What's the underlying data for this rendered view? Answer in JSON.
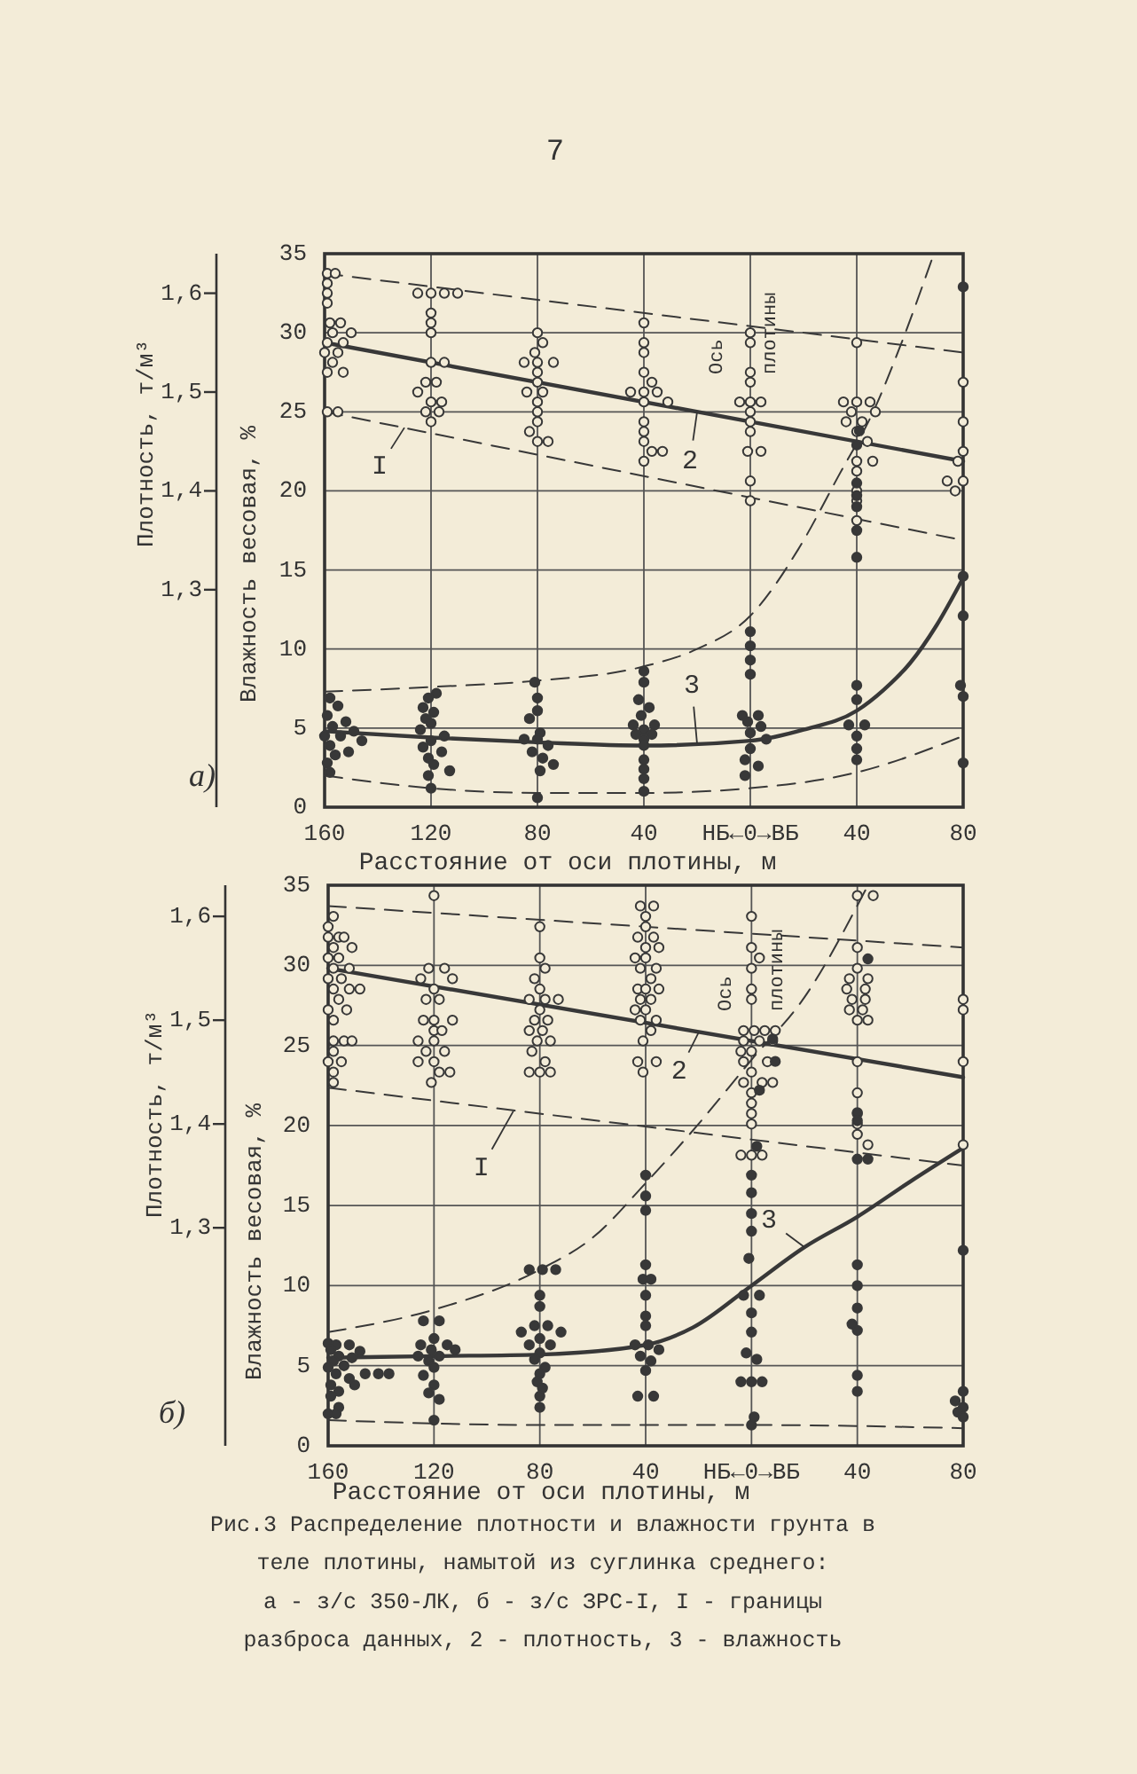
{
  "chart_data": [
    {
      "type": "scatter",
      "title": "а)",
      "xlabel": "Расстояние от оси плотины, м",
      "ylabel": "Влажность весовая, %",
      "y2label": "Плотность, т/м³",
      "xlim": [
        -160,
        80
      ],
      "xticks": [
        {
          "value": -160,
          "label": "160"
        },
        {
          "value": -120,
          "label": "120"
        },
        {
          "value": -80,
          "label": "80"
        },
        {
          "value": -40,
          "label": "40"
        },
        {
          "value": 0,
          "label": "НБ←0→ВБ"
        },
        {
          "value": 40,
          "label": "40"
        },
        {
          "value": 80,
          "label": "80"
        }
      ],
      "ylim": [
        0,
        35
      ],
      "yticks": [
        0,
        5,
        10,
        15,
        20,
        25,
        30,
        35
      ],
      "y2lim": [
        1.08,
        1.64
      ],
      "y2ticks": [
        {
          "value": 1.3,
          "label": "1,3"
        },
        {
          "value": 1.4,
          "label": "1,4"
        },
        {
          "value": 1.5,
          "label": "1,5"
        },
        {
          "value": 1.6,
          "label": "1,6"
        }
      ],
      "grid": true,
      "annotations": [
        "7",
        "Ось плотины",
        {
          "text": "2",
          "x": -20,
          "y": 25
        },
        {
          "text": "3",
          "x": -20,
          "y": 4
        },
        {
          "text": "I",
          "x": -130,
          "y": 24
        }
      ],
      "series": [
        {
          "type": "line",
          "axis": "y2",
          "line_style": "solid",
          "color": "#383838",
          "x": [
            -160,
            80
          ],
          "values": [
            1.55,
            1.43
          ]
        },
        {
          "type": "line",
          "axis": "y",
          "line_style": "solid",
          "color": "#383838",
          "x": [
            -160,
            -120,
            -80,
            -40,
            0,
            20,
            40,
            50,
            60,
            70,
            80
          ],
          "values": [
            4.8,
            4.4,
            4.1,
            3.9,
            4.2,
            4.9,
            6.1,
            7.4,
            9.1,
            11.5,
            14.5
          ]
        },
        {
          "type": "line",
          "axis": "y2",
          "line_style": "dashed",
          "color": "#383838",
          "x": [
            -160,
            80
          ],
          "values": [
            1.48,
            1.35
          ]
        },
        {
          "type": "line",
          "axis": "y2",
          "line_style": "dashed",
          "color": "#383838",
          "x": [
            -160,
            80
          ],
          "values": [
            1.62,
            1.54
          ]
        },
        {
          "type": "line",
          "axis": "y",
          "line_style": "dashed",
          "color": "#383838",
          "x": [
            -160,
            -120,
            -80,
            -40,
            -20,
            0,
            18,
            33,
            47,
            56,
            69
          ],
          "values": [
            7.3,
            7.6,
            8.0,
            8.9,
            10.0,
            12.1,
            16.3,
            20.9,
            25.3,
            29.0,
            35
          ]
        },
        {
          "type": "line",
          "axis": "y",
          "line_style": "dashed",
          "color": "#383838",
          "x": [
            -160,
            -120,
            -80,
            -40,
            0,
            40,
            80
          ],
          "values": [
            2.0,
            1.2,
            0.9,
            0.9,
            1.2,
            2.2,
            4.5
          ]
        },
        {
          "axis": "y2",
          "marker": "circle",
          "color": "#383838",
          "x": [
            -159,
            -156,
            -159,
            -159,
            -159,
            -158,
            -154,
            -150,
            -157,
            -153,
            -159,
            -155,
            -160,
            -157,
            -153,
            -159,
            -159,
            -155,
            -125,
            -120,
            -115,
            -110,
            -120,
            -120,
            -120,
            -120,
            -115,
            -122,
            -118,
            -125,
            -120,
            -116,
            -122,
            -117,
            -120,
            -80,
            -78,
            -81,
            -85,
            -80,
            -74,
            -80,
            -80,
            -84,
            -78,
            -80,
            -80,
            -80,
            -83,
            -80,
            -76,
            -40,
            -40,
            -40,
            -40,
            -37,
            -45,
            -40,
            -35,
            -31,
            -40,
            -40,
            -40,
            -40,
            -37,
            -33,
            -40,
            0,
            0,
            0,
            0,
            -4,
            0,
            4,
            0,
            0,
            0,
            -1,
            4,
            0,
            0,
            40,
            35,
            40,
            45,
            38,
            47,
            42,
            36,
            40,
            44,
            40,
            46,
            40,
            40,
            40,
            40,
            80,
            80,
            80,
            78,
            74,
            80,
            77
          ],
          "values": [
            1.62,
            1.62,
            1.61,
            1.6,
            1.59,
            1.57,
            1.57,
            1.56,
            1.56,
            1.55,
            1.55,
            1.54,
            1.54,
            1.53,
            1.52,
            1.52,
            1.48,
            1.48,
            1.6,
            1.6,
            1.6,
            1.6,
            1.58,
            1.57,
            1.56,
            1.53,
            1.53,
            1.51,
            1.51,
            1.5,
            1.49,
            1.49,
            1.48,
            1.48,
            1.47,
            1.56,
            1.55,
            1.54,
            1.53,
            1.53,
            1.53,
            1.52,
            1.51,
            1.5,
            1.5,
            1.49,
            1.48,
            1.47,
            1.46,
            1.45,
            1.45,
            1.57,
            1.55,
            1.54,
            1.52,
            1.51,
            1.5,
            1.5,
            1.5,
            1.49,
            1.49,
            1.47,
            1.46,
            1.45,
            1.44,
            1.44,
            1.43,
            1.56,
            1.55,
            1.52,
            1.51,
            1.49,
            1.49,
            1.49,
            1.48,
            1.47,
            1.46,
            1.44,
            1.44,
            1.41,
            1.39,
            1.55,
            1.49,
            1.49,
            1.49,
            1.48,
            1.48,
            1.47,
            1.47,
            1.46,
            1.45,
            1.43,
            1.43,
            1.42,
            1.4,
            1.39,
            1.37,
            1.51,
            1.47,
            1.44,
            1.43,
            1.41,
            1.41,
            1.4
          ]
        },
        {
          "axis": "y",
          "marker": "circle",
          "color": "#383838",
          "x": [
            -158,
            -155,
            -159,
            -152,
            -157,
            -149,
            -160,
            -154,
            -146,
            -158,
            -151,
            -156,
            -159,
            -158,
            -118,
            -121,
            -123,
            -119,
            -122,
            -120,
            -124,
            -115,
            -120,
            -123,
            -116,
            -121,
            -119,
            -113,
            -121,
            -120,
            -81,
            -80,
            -80,
            -83,
            -79,
            -85,
            -80,
            -76,
            -82,
            -78,
            -74,
            -79,
            -80,
            -40,
            -40,
            -42,
            -38,
            -41,
            -44,
            -36,
            -40,
            -43,
            -37,
            -40,
            -40,
            -40,
            -40,
            -40,
            -40,
            0,
            0,
            0,
            0,
            -3,
            3,
            -1,
            4,
            0,
            6,
            0,
            -2,
            3,
            -2,
            41,
            40,
            40,
            40,
            40,
            40,
            40,
            40,
            40,
            37,
            43,
            40,
            40,
            40,
            80,
            80,
            80,
            79,
            80,
            80
          ],
          "values": [
            6.9,
            6.4,
            5.8,
            5.4,
            5.1,
            4.8,
            4.5,
            4.5,
            4.2,
            3.9,
            3.5,
            3.3,
            2.8,
            2.2,
            7.2,
            6.9,
            6.3,
            6.0,
            5.6,
            5.3,
            4.9,
            4.5,
            4.2,
            3.8,
            3.5,
            3.1,
            2.7,
            2.3,
            2.0,
            1.2,
            7.9,
            6.9,
            6.1,
            5.6,
            4.7,
            4.3,
            4.3,
            3.9,
            3.5,
            3.1,
            2.7,
            2.3,
            0.6,
            8.6,
            7.9,
            6.8,
            6.3,
            5.8,
            5.2,
            5.2,
            4.9,
            4.6,
            4.6,
            4.3,
            3.9,
            3.0,
            2.4,
            1.8,
            1.0,
            11.1,
            10.2,
            9.3,
            8.4,
            5.8,
            5.8,
            5.4,
            5.1,
            4.7,
            4.3,
            3.7,
            3.0,
            2.6,
            2.0,
            23.8,
            22.9,
            20.5,
            19.7,
            19.0,
            17.5,
            15.8,
            7.7,
            6.8,
            5.2,
            5.2,
            4.5,
            3.7,
            3.0,
            32.9,
            14.6,
            12.1,
            7.7,
            7.0,
            2.8
          ]
        }
      ]
    },
    {
      "type": "scatter",
      "title": "б)",
      "xlabel": "Расстояние от оси плотины, м",
      "ylabel": "Влажность весовая, %",
      "y2label": "Плотность, т/м³",
      "xlim": [
        -160,
        80
      ],
      "xticks": [
        {
          "value": -160,
          "label": "160"
        },
        {
          "value": -120,
          "label": "120"
        },
        {
          "value": -80,
          "label": "80"
        },
        {
          "value": -40,
          "label": "40"
        },
        {
          "value": 0,
          "label": "НБ←0→ВБ"
        },
        {
          "value": 40,
          "label": "40"
        },
        {
          "value": 80,
          "label": "80"
        }
      ],
      "ylim": [
        0,
        35
      ],
      "yticks": [
        0,
        5,
        10,
        15,
        20,
        25,
        30,
        35
      ],
      "y2lim": [
        1.09,
        1.63
      ],
      "y2ticks": [
        {
          "value": 1.3,
          "label": "1,3"
        },
        {
          "value": 1.4,
          "label": "1,4"
        },
        {
          "value": 1.5,
          "label": "1,5"
        },
        {
          "value": 1.6,
          "label": "1,6"
        }
      ],
      "grid": true,
      "annotations": [
        "Ось плотины",
        {
          "text": "2",
          "x": -20,
          "y": 25.8
        },
        {
          "text": "3",
          "x": 20,
          "y": 12.4
        },
        {
          "text": "I",
          "x": -90,
          "y": 20.9
        },
        "Рис.3 Распределение плотности и влажности грунта в\nтеле плотины, намытой из суглинка среднего:\nа - з/с 350-ЛК, б - з/с ЗРС-I, I - границы\nразброса данных, 2 - плотность, 3 - влажность"
      ],
      "series": [
        {
          "type": "line",
          "axis": "y2",
          "line_style": "solid",
          "color": "#383838",
          "x": [
            -160,
            80
          ],
          "values": [
            1.55,
            1.445
          ]
        },
        {
          "type": "line",
          "axis": "y",
          "line_style": "solid",
          "color": "#383838",
          "x": [
            -160,
            -120,
            -80,
            -40,
            -22,
            0,
            20,
            40,
            60,
            80
          ],
          "values": [
            5.5,
            5.6,
            5.7,
            6.3,
            7.4,
            10.0,
            12.4,
            14.3,
            16.5,
            18.6
          ]
        },
        {
          "type": "line",
          "axis": "y2",
          "line_style": "dashed",
          "color": "#383838",
          "x": [
            -160,
            80
          ],
          "values": [
            1.435,
            1.36
          ]
        },
        {
          "type": "line",
          "axis": "y2",
          "line_style": "dashed",
          "color": "#383838",
          "x": [
            -160,
            80
          ],
          "values": [
            1.61,
            1.57
          ]
        },
        {
          "type": "line",
          "axis": "y",
          "line_style": "dashed",
          "color": "#383838",
          "x": [
            -160,
            -120,
            -80,
            -60,
            -40,
            -20,
            0,
            20,
            44
          ],
          "values": [
            7.1,
            8.5,
            11.0,
            13.0,
            16.4,
            20.1,
            24.1,
            28.0,
            35
          ]
        },
        {
          "type": "line",
          "axis": "y",
          "line_style": "dashed",
          "color": "#383838",
          "x": [
            -160,
            -80,
            0,
            80
          ],
          "values": [
            1.6,
            1.3,
            1.3,
            1.1
          ]
        },
        {
          "axis": "y2",
          "marker": "circle",
          "color": "#383838",
          "x": [
            -158,
            -160,
            -156,
            -160,
            -154,
            -158,
            -151,
            -160,
            -156,
            -158,
            -152,
            -160,
            -155,
            -158,
            -152,
            -148,
            -156,
            -160,
            -153,
            -158,
            -158,
            -154,
            -151,
            -158,
            -160,
            -155,
            -158,
            -158,
            -120,
            -122,
            -116,
            -125,
            -113,
            -120,
            -123,
            -118,
            -120,
            -124,
            -113,
            -120,
            -117,
            -126,
            -120,
            -123,
            -116,
            -120,
            -126,
            -118,
            -114,
            -121,
            -80,
            -80,
            -78,
            -82,
            -80,
            -84,
            -78,
            -73,
            -80,
            -82,
            -77,
            -84,
            -79,
            -81,
            -76,
            -83,
            -78,
            -84,
            -80,
            -76,
            -42,
            -37,
            -40,
            -40,
            -43,
            -37,
            -40,
            -35,
            -44,
            -40,
            -36,
            -42,
            -38,
            -43,
            -40,
            -35,
            -42,
            -38,
            -44,
            -40,
            -36,
            -42,
            -38,
            -41,
            -43,
            -36,
            -41,
            0,
            0,
            3,
            0,
            0,
            0,
            -3,
            1,
            5,
            9,
            -3,
            3,
            8,
            -4,
            0,
            -3,
            6,
            0,
            -3,
            4,
            8,
            0,
            0,
            0,
            0,
            -4,
            0,
            4,
            40,
            46,
            40,
            40,
            37,
            44,
            36,
            43,
            38,
            43,
            37,
            42,
            40,
            44,
            40,
            40,
            40,
            40,
            40,
            44,
            80,
            80,
            80,
            80
          ],
          "values": [
            1.6,
            1.59,
            1.58,
            1.58,
            1.58,
            1.57,
            1.57,
            1.56,
            1.56,
            1.55,
            1.55,
            1.54,
            1.54,
            1.53,
            1.53,
            1.53,
            1.52,
            1.51,
            1.51,
            1.5,
            1.48,
            1.48,
            1.48,
            1.47,
            1.46,
            1.46,
            1.45,
            1.44,
            1.62,
            1.55,
            1.55,
            1.54,
            1.54,
            1.53,
            1.52,
            1.52,
            1.5,
            1.5,
            1.5,
            1.49,
            1.49,
            1.48,
            1.48,
            1.47,
            1.47,
            1.46,
            1.46,
            1.45,
            1.45,
            1.44,
            1.59,
            1.56,
            1.55,
            1.54,
            1.53,
            1.52,
            1.52,
            1.52,
            1.51,
            1.5,
            1.5,
            1.49,
            1.49,
            1.48,
            1.48,
            1.47,
            1.46,
            1.45,
            1.45,
            1.45,
            1.61,
            1.61,
            1.6,
            1.59,
            1.58,
            1.58,
            1.57,
            1.57,
            1.56,
            1.56,
            1.55,
            1.55,
            1.54,
            1.53,
            1.53,
            1.53,
            1.52,
            1.52,
            1.51,
            1.51,
            1.5,
            1.5,
            1.49,
            1.48,
            1.46,
            1.46,
            1.45,
            1.6,
            1.57,
            1.56,
            1.55,
            1.53,
            1.52,
            1.49,
            1.49,
            1.49,
            1.49,
            1.48,
            1.48,
            1.48,
            1.47,
            1.47,
            1.46,
            1.46,
            1.45,
            1.44,
            1.44,
            1.44,
            1.43,
            1.42,
            1.41,
            1.4,
            1.37,
            1.37,
            1.37,
            1.62,
            1.62,
            1.57,
            1.55,
            1.54,
            1.54,
            1.53,
            1.53,
            1.52,
            1.52,
            1.51,
            1.51,
            1.5,
            1.5,
            1.46,
            1.43,
            1.41,
            1.4,
            1.39,
            1.38,
            1.52,
            1.51,
            1.46,
            1.38
          ]
        },
        {
          "axis": "y",
          "marker": "circle",
          "color": "#383838",
          "x": [
            -160,
            -157,
            -152,
            -159,
            -148,
            -156,
            -151,
            -158,
            -154,
            -160,
            -146,
            -141,
            -137,
            -157,
            -152,
            -159,
            -150,
            -156,
            -159,
            -156,
            -160,
            -157,
            -124,
            -118,
            -120,
            -125,
            -115,
            -121,
            -112,
            -126,
            -118,
            -122,
            -120,
            -124,
            -120,
            -122,
            -118,
            -120,
            -84,
            -79,
            -74,
            -80,
            -80,
            -82,
            -77,
            -87,
            -72,
            -80,
            -84,
            -76,
            -80,
            -82,
            -78,
            -80,
            -81,
            -79,
            -80,
            -80,
            -40,
            -40,
            -40,
            -40,
            -41,
            -38,
            -40,
            -40,
            -40,
            -44,
            -39,
            -35,
            -42,
            -38,
            -40,
            -43,
            -37,
            8,
            9,
            3,
            2,
            0,
            0,
            0,
            0,
            -1,
            -3,
            3,
            0,
            0,
            -2,
            2,
            -4,
            0,
            4,
            1,
            0,
            44,
            40,
            40,
            40,
            44,
            40,
            40,
            40,
            38,
            40,
            40,
            40,
            80,
            80,
            77,
            80,
            78,
            80
          ],
          "values": [
            6.4,
            6.3,
            6.3,
            6.0,
            5.9,
            5.6,
            5.5,
            5.3,
            5.0,
            4.9,
            4.5,
            4.5,
            4.5,
            4.5,
            4.2,
            3.8,
            3.8,
            3.4,
            3.1,
            2.4,
            2.0,
            2.0,
            7.8,
            7.8,
            6.7,
            6.3,
            6.3,
            6.0,
            6.0,
            5.6,
            5.6,
            5.3,
            4.9,
            4.4,
            3.8,
            3.3,
            2.9,
            1.6,
            11.0,
            11.0,
            11.0,
            9.4,
            8.7,
            7.5,
            7.5,
            7.1,
            7.1,
            6.7,
            6.3,
            6.3,
            5.8,
            5.4,
            4.9,
            4.5,
            4.0,
            3.6,
            3.1,
            2.4,
            16.9,
            15.6,
            14.7,
            11.3,
            10.4,
            10.4,
            9.4,
            8.1,
            7.5,
            6.3,
            6.3,
            6.0,
            5.6,
            5.3,
            4.7,
            3.1,
            3.1,
            25.4,
            24.0,
            22.2,
            18.7,
            16.9,
            15.8,
            14.5,
            13.4,
            11.7,
            9.4,
            9.4,
            8.3,
            7.1,
            5.8,
            5.4,
            4.0,
            4.0,
            4.0,
            1.8,
            1.3,
            30.4,
            20.8,
            20.3,
            17.9,
            17.9,
            11.3,
            10.0,
            8.6,
            7.6,
            7.2,
            4.4,
            3.4,
            12.2,
            3.4,
            2.8,
            2.4,
            2.1,
            1.8
          ]
        }
      ]
    }
  ]
}
